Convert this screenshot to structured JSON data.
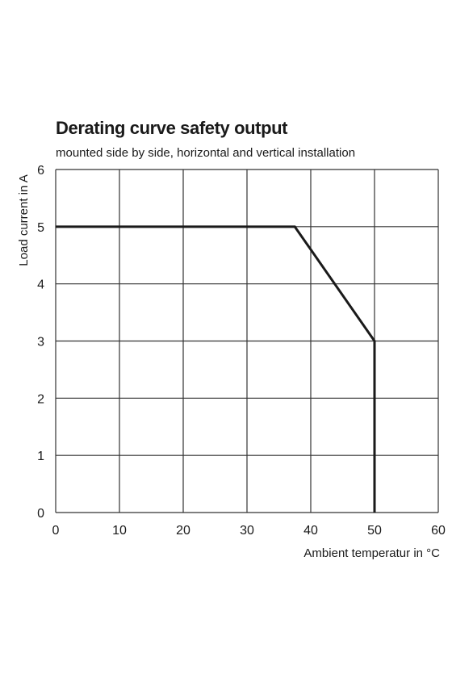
{
  "chart_data": {
    "type": "line",
    "title": "Derating curve safety output",
    "subtitle": "mounted side by side, horizontal and vertical installation",
    "xlabel": "Ambient temperatur in °C",
    "ylabel": "Load  current in A",
    "xlim": [
      0,
      60
    ],
    "ylim": [
      0,
      6
    ],
    "xticks": [
      0,
      10,
      20,
      30,
      40,
      50,
      60
    ],
    "yticks": [
      0,
      1,
      2,
      3,
      4,
      5,
      6
    ],
    "grid": true,
    "legend": "none",
    "series": [
      {
        "x": [
          0,
          37.5,
          50,
          50
        ],
        "y": [
          5,
          5,
          3,
          0
        ],
        "color": "#1a1a1a"
      }
    ]
  }
}
